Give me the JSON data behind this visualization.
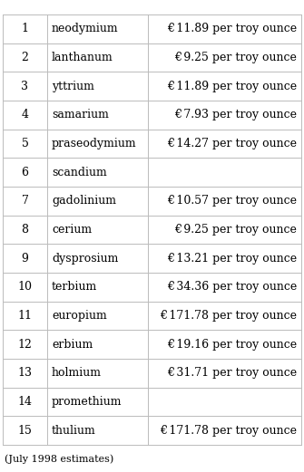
{
  "rows": [
    {
      "num": "1",
      "element": "neodymium",
      "price": "€ 11.89 per troy ounce"
    },
    {
      "num": "2",
      "element": "lanthanum",
      "price": "€ 9.25 per troy ounce"
    },
    {
      "num": "3",
      "element": "yttrium",
      "price": "€ 11.89 per troy ounce"
    },
    {
      "num": "4",
      "element": "samarium",
      "price": "€ 7.93 per troy ounce"
    },
    {
      "num": "5",
      "element": "praseodymium",
      "price": "€ 14.27 per troy ounce"
    },
    {
      "num": "6",
      "element": "scandium",
      "price": ""
    },
    {
      "num": "7",
      "element": "gadolinium",
      "price": "€ 10.57 per troy ounce"
    },
    {
      "num": "8",
      "element": "cerium",
      "price": "€ 9.25 per troy ounce"
    },
    {
      "num": "9",
      "element": "dysprosium",
      "price": "€ 13.21 per troy ounce"
    },
    {
      "num": "10",
      "element": "terbium",
      "price": "€ 34.36 per troy ounce"
    },
    {
      "num": "11",
      "element": "europium",
      "price": "€ 171.78 per troy ounce"
    },
    {
      "num": "12",
      "element": "erbium",
      "price": "€ 19.16 per troy ounce"
    },
    {
      "num": "13",
      "element": "holmium",
      "price": "€ 31.71 per troy ounce"
    },
    {
      "num": "14",
      "element": "promethium",
      "price": ""
    },
    {
      "num": "15",
      "element": "thulium",
      "price": "€ 171.78 per troy ounce"
    }
  ],
  "footnote": "(July 1998 estimates)",
  "bg_color": "#ffffff",
  "line_color": "#bbbbbb",
  "text_color": "#000000",
  "font_size": 9.0,
  "footnote_font_size": 8.0
}
